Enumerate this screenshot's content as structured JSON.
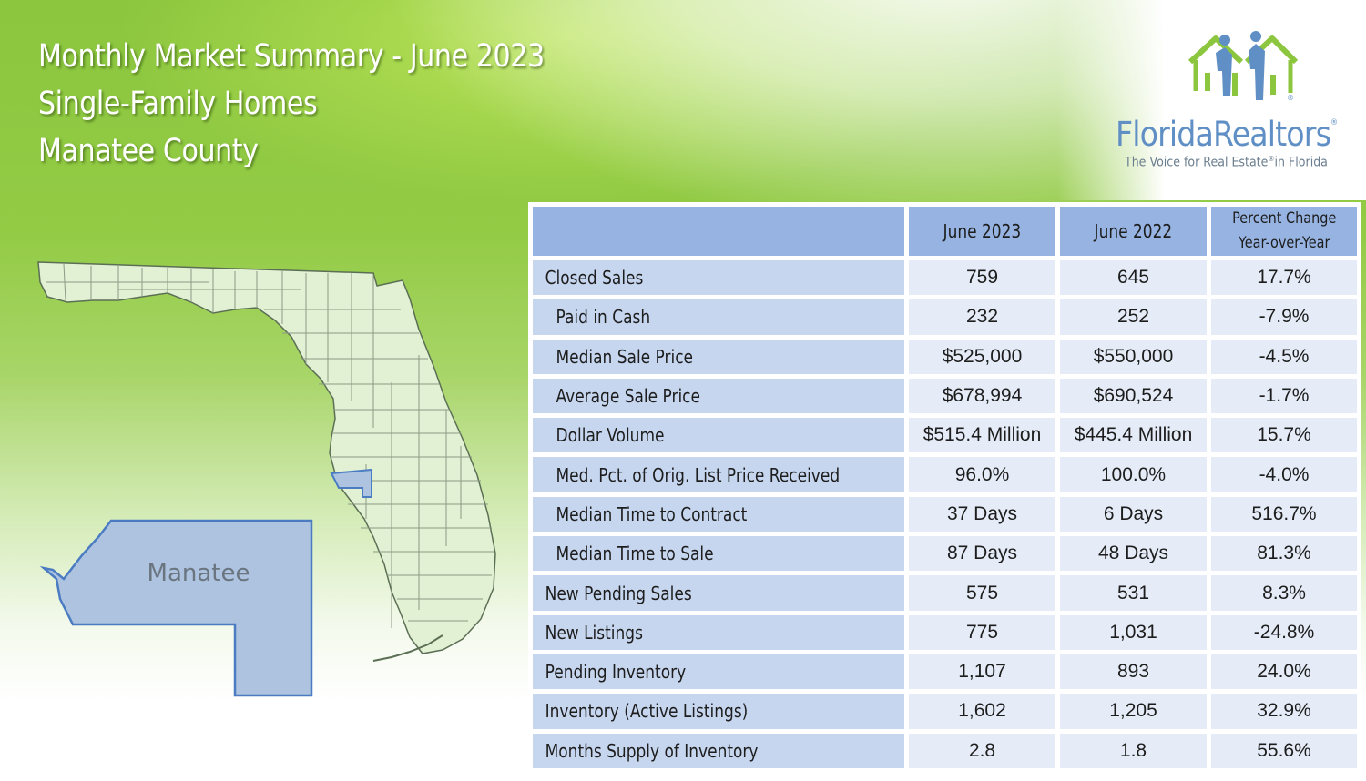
{
  "header": {
    "title_line1": "Monthly Market Summary - June 2023",
    "title_line2": "Single-Family Homes",
    "title_line3": "Manatee County"
  },
  "logo": {
    "brand": "FloridaRealtors",
    "tagline": "The Voice for Real Estate",
    "tagline_suffix": "in Florida",
    "registered_mark": "®"
  },
  "map": {
    "county_label": "Manatee",
    "colors": {
      "state_fill": "#e2f0d4",
      "county_fill": "#adc3e0",
      "county_stroke": "#4b7cc2",
      "border": "#5b6f55"
    }
  },
  "table": {
    "columns": [
      "",
      "June 2023",
      "June 2022"
    ],
    "pct_header_line1": "Percent Change",
    "pct_header_line2": "Year-over-Year",
    "rows": [
      {
        "label": "Closed Sales",
        "indent": 1,
        "v2023": "759",
        "v2022": "645",
        "pct": "17.7%"
      },
      {
        "label": "Paid in Cash",
        "indent": 2,
        "v2023": "232",
        "v2022": "252",
        "pct": "-7.9%"
      },
      {
        "label": "Median Sale Price",
        "indent": 2,
        "v2023": "$525,000",
        "v2022": "$550,000",
        "pct": "-4.5%"
      },
      {
        "label": "Average Sale Price",
        "indent": 2,
        "v2023": "$678,994",
        "v2022": "$690,524",
        "pct": "-1.7%"
      },
      {
        "label": "Dollar Volume",
        "indent": 2,
        "v2023": "$515.4 Million",
        "v2022": "$445.4 Million",
        "pct": "15.7%"
      },
      {
        "label": "Med. Pct. of Orig. List Price Received",
        "indent": 2,
        "v2023": "96.0%",
        "v2022": "100.0%",
        "pct": "-4.0%"
      },
      {
        "label": "Median Time to Contract",
        "indent": 2,
        "v2023": "37 Days",
        "v2022": "6 Days",
        "pct": "516.7%"
      },
      {
        "label": "Median Time to Sale",
        "indent": 2,
        "v2023": "87 Days",
        "v2022": "48 Days",
        "pct": "81.3%"
      },
      {
        "label": "New Pending Sales",
        "indent": 1,
        "v2023": "575",
        "v2022": "531",
        "pct": "8.3%"
      },
      {
        "label": "New Listings",
        "indent": 1,
        "v2023": "775",
        "v2022": "1,031",
        "pct": "-24.8%"
      },
      {
        "label": "Pending Inventory",
        "indent": 1,
        "v2023": "1,107",
        "v2022": "893",
        "pct": "24.0%"
      },
      {
        "label": "Inventory (Active Listings)",
        "indent": 1,
        "v2023": "1,602",
        "v2022": "1,205",
        "pct": "32.9%"
      },
      {
        "label": "Months Supply of Inventory",
        "indent": 1,
        "v2023": "2.8",
        "v2022": "1.8",
        "pct": "55.6%"
      }
    ]
  },
  "colors": {
    "header_cell": "#96b3e1",
    "label_cell": "#c6d6ef",
    "value_cell": "#e5ecf7",
    "brand_blue": "#5f8fc4",
    "green": "#8bc63e"
  }
}
